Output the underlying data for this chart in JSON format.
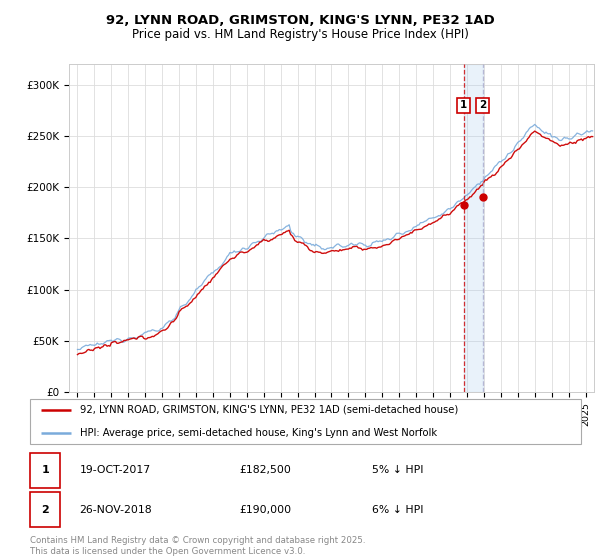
{
  "title_line1": "92, LYNN ROAD, GRIMSTON, KING'S LYNN, PE32 1AD",
  "title_line2": "Price paid vs. HM Land Registry's House Price Index (HPI)",
  "legend_label1": "92, LYNN ROAD, GRIMSTON, KING'S LYNN, PE32 1AD (semi-detached house)",
  "legend_label2": "HPI: Average price, semi-detached house, King's Lynn and West Norfolk",
  "line1_color": "#cc0000",
  "line2_color": "#7aabdb",
  "vline1_x": 2017.8,
  "vline2_x": 2018.92,
  "ylim_min": 0,
  "ylim_max": 320000,
  "xlim_min": 1994.5,
  "xlim_max": 2025.5,
  "copyright_text": "Contains HM Land Registry data © Crown copyright and database right 2025.\nThis data is licensed under the Open Government Licence v3.0.",
  "background_color": "#ffffff",
  "grid_color": "#dddddd",
  "yticks": [
    0,
    50000,
    100000,
    150000,
    200000,
    250000,
    300000
  ],
  "ytick_labels": [
    "£0",
    "£50K",
    "£100K",
    "£150K",
    "£200K",
    "£250K",
    "£300K"
  ],
  "sale1_x": 2017.8,
  "sale1_y": 182500,
  "sale2_x": 2018.92,
  "sale2_y": 190000
}
